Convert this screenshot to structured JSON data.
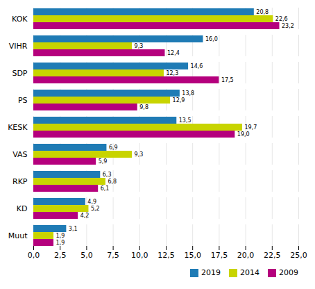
{
  "chart_data": {
    "type": "bar",
    "orientation": "horizontal",
    "categories": [
      "Muut",
      "KD",
      "RKP",
      "VAS",
      "KESK",
      "PS",
      "SDP",
      "VIHR",
      "KOK"
    ],
    "series": [
      {
        "name": "2019",
        "color": "#1f7bb5",
        "values": [
          3.1,
          4.9,
          6.3,
          6.9,
          13.5,
          13.8,
          14.6,
          16.0,
          20.8
        ],
        "value_labels": [
          "3,1",
          "4,9",
          "6,3",
          "6,9",
          "13,5",
          "13,8",
          "14,6",
          "16,0",
          "20,8"
        ]
      },
      {
        "name": "2014",
        "color": "#c8d400",
        "values": [
          1.9,
          5.2,
          6.8,
          9.3,
          19.7,
          12.9,
          12.3,
          9.3,
          22.6
        ],
        "value_labels": [
          "1,9",
          "5,2",
          "6,8",
          "9,3",
          "19,7",
          "12,9",
          "12,3",
          "9,3",
          "22,6"
        ]
      },
      {
        "name": "2009",
        "color": "#b5007d",
        "values": [
          1.9,
          4.2,
          6.1,
          5.9,
          19.0,
          9.8,
          17.5,
          12.4,
          23.2
        ],
        "value_labels": [
          "1,9",
          "4,2",
          "6,1",
          "5,9",
          "19,0",
          "9,8",
          "17,5",
          "12,4",
          "23,2"
        ]
      }
    ],
    "xlim": [
      0,
      25
    ],
    "xticks": [
      {
        "value": 0,
        "label": "0,0"
      },
      {
        "value": 2.5,
        "label": "2,5"
      },
      {
        "value": 5.0,
        "label": "5,0"
      },
      {
        "value": 7.5,
        "label": "7,5"
      },
      {
        "value": 10.0,
        "label": "10,0"
      },
      {
        "value": 12.5,
        "label": "12,5"
      },
      {
        "value": 15.0,
        "label": "15,0"
      },
      {
        "value": 17.5,
        "label": "17,5"
      },
      {
        "value": 20.0,
        "label": "20,0"
      },
      {
        "value": 22.5,
        "label": "22,5"
      },
      {
        "value": 25.0,
        "label": "25,0"
      }
    ],
    "grid": true,
    "legend": "lower right",
    "data_labels": true
  }
}
